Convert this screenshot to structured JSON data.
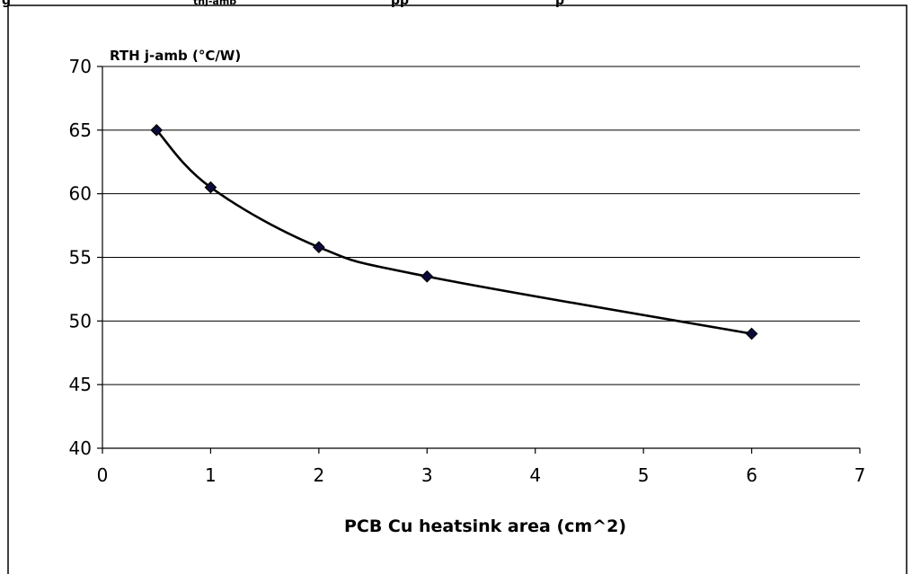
{
  "header": {
    "caption_parts": [
      "g",
      "thj-amb",
      "pp",
      "p"
    ]
  },
  "chart_data": {
    "type": "line",
    "x": [
      0.5,
      1,
      2,
      3,
      6
    ],
    "series": [
      {
        "values": [
          65,
          60.5,
          55.8,
          53.5,
          49
        ],
        "color": "#000000",
        "marker": "diamond",
        "marker_color": "#0b0b3b"
      }
    ],
    "xlabel": "PCB Cu heatsink area (cm^2)",
    "ylabel": "RTH j-amb (°C/W)",
    "xlim": [
      0,
      7
    ],
    "ylim": [
      40,
      70
    ],
    "xticks": [
      0,
      1,
      2,
      3,
      4,
      5,
      6,
      7
    ],
    "yticks": [
      40,
      45,
      50,
      55,
      60,
      65,
      70
    ],
    "xtick_labels": [
      "0",
      "1",
      "2",
      "3",
      "4",
      "5",
      "6",
      "7"
    ],
    "ytick_labels": [
      "40",
      "45",
      "50",
      "55",
      "60",
      "65",
      "70"
    ],
    "grid": "horizontal",
    "smooth": true,
    "legend": "none"
  }
}
